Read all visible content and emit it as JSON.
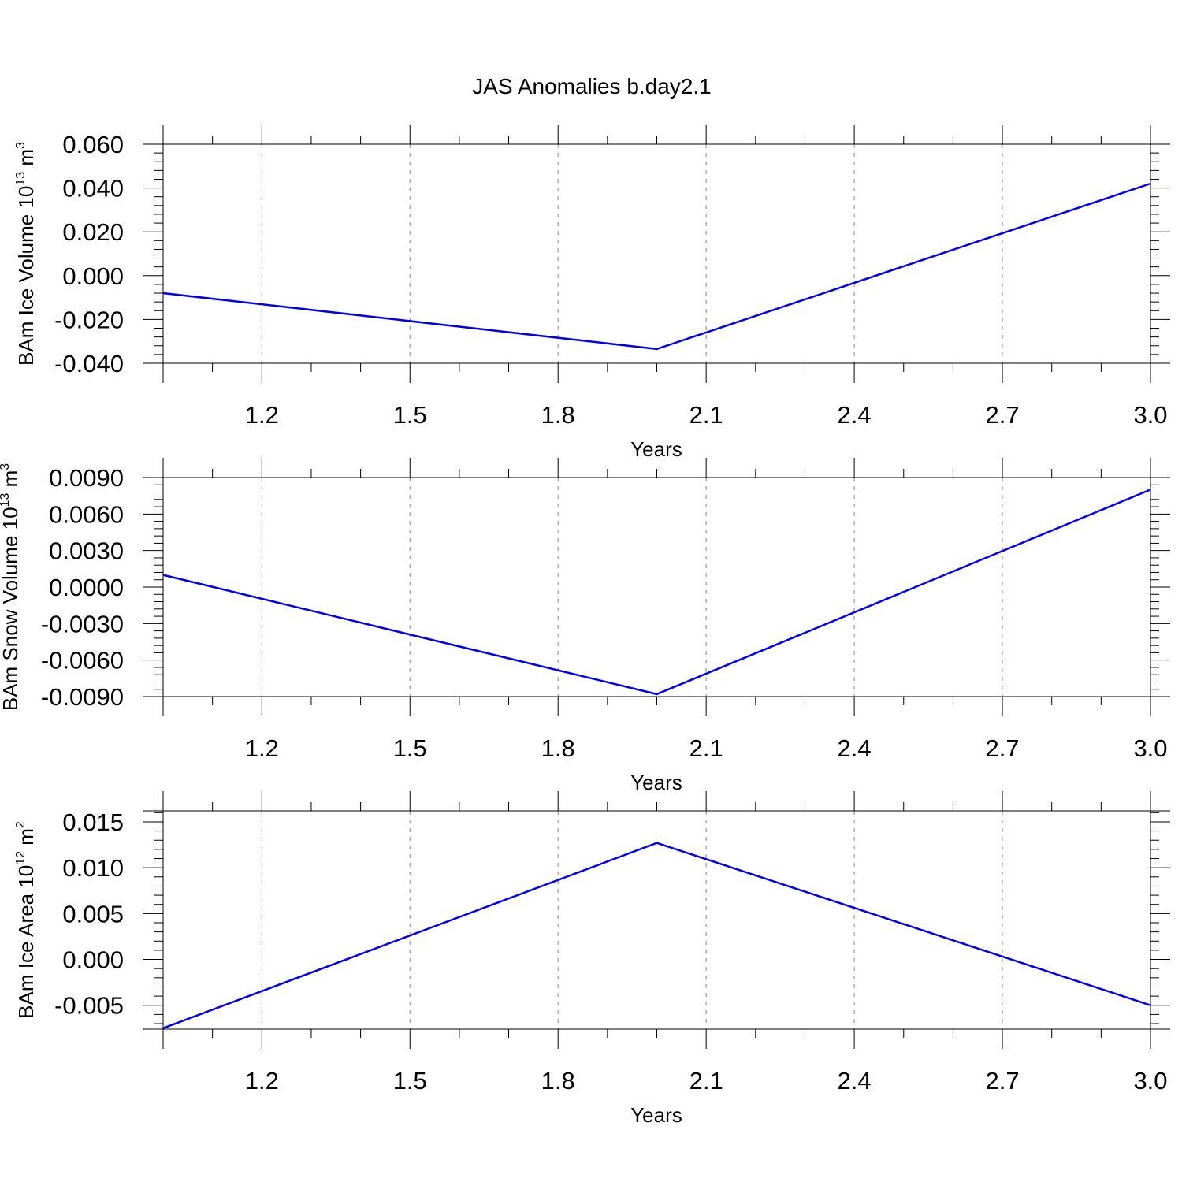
{
  "title": "JAS Anomalies b.day2.1",
  "line_color": "#0000ee",
  "grid_color": "#999999",
  "chart_data": [
    {
      "type": "line",
      "xlabel": "Years",
      "ylabel": {
        "prefix": "BAm Ice Volume 10",
        "exp": "13",
        "unit": " m",
        "unit_exp": "3"
      },
      "x": [
        1.0,
        2.0,
        3.0
      ],
      "series": [
        {
          "values": [
            -0.008,
            -0.0335,
            0.042
          ]
        }
      ],
      "xlim": [
        1.0,
        3.0
      ],
      "ylim": [
        -0.04,
        0.06
      ],
      "xticks": [
        1.2,
        1.5,
        1.8,
        2.1,
        2.4,
        2.7,
        3.0
      ],
      "xtick_labels": [
        "1.2",
        "1.5",
        "1.8",
        "2.1",
        "2.4",
        "2.7",
        "3.0"
      ],
      "yticks": [
        -0.04,
        -0.02,
        0.0,
        0.02,
        0.04,
        0.06
      ],
      "ytick_labels": [
        "-0.040",
        "-0.020",
        "0.000",
        "0.020",
        "0.040",
        "0.060"
      ],
      "grid": "vertical dashed"
    },
    {
      "type": "line",
      "xlabel": "Years",
      "ylabel": {
        "prefix": "BAm Snow Volume 10",
        "exp": "13",
        "unit": " m",
        "unit_exp": "3"
      },
      "x": [
        1.0,
        2.0,
        3.0
      ],
      "series": [
        {
          "values": [
            0.001,
            -0.0088,
            0.008
          ]
        }
      ],
      "xlim": [
        1.0,
        3.0
      ],
      "ylim": [
        -0.009,
        0.009
      ],
      "xticks": [
        1.2,
        1.5,
        1.8,
        2.1,
        2.4,
        2.7,
        3.0
      ],
      "xtick_labels": [
        "1.2",
        "1.5",
        "1.8",
        "2.1",
        "2.4",
        "2.7",
        "3.0"
      ],
      "yticks": [
        -0.009,
        -0.006,
        -0.003,
        0.0,
        0.003,
        0.006,
        0.009
      ],
      "ytick_labels": [
        "-0.0090",
        "-0.0060",
        "-0.0030",
        "0.0000",
        "0.0030",
        "0.0060",
        "0.0090"
      ],
      "grid": "vertical dashed"
    },
    {
      "type": "line",
      "xlabel": "Years",
      "ylabel": {
        "prefix": "BAm Ice Area 10",
        "exp": "12",
        "unit": " m",
        "unit_exp": "2"
      },
      "x": [
        1.0,
        2.0,
        3.0
      ],
      "series": [
        {
          "values": [
            -0.0075,
            0.0127,
            -0.005
          ]
        }
      ],
      "xlim": [
        1.0,
        3.0
      ],
      "ylim": [
        -0.0076,
        0.0162
      ],
      "xticks": [
        1.2,
        1.5,
        1.8,
        2.1,
        2.4,
        2.7,
        3.0
      ],
      "xtick_labels": [
        "1.2",
        "1.5",
        "1.8",
        "2.1",
        "2.4",
        "2.7",
        "3.0"
      ],
      "yticks": [
        -0.005,
        0.0,
        0.005,
        0.01,
        0.015
      ],
      "ytick_labels": [
        "-0.005",
        "0.000",
        "0.005",
        "0.010",
        "0.015"
      ],
      "grid": "vertical dashed"
    }
  ]
}
